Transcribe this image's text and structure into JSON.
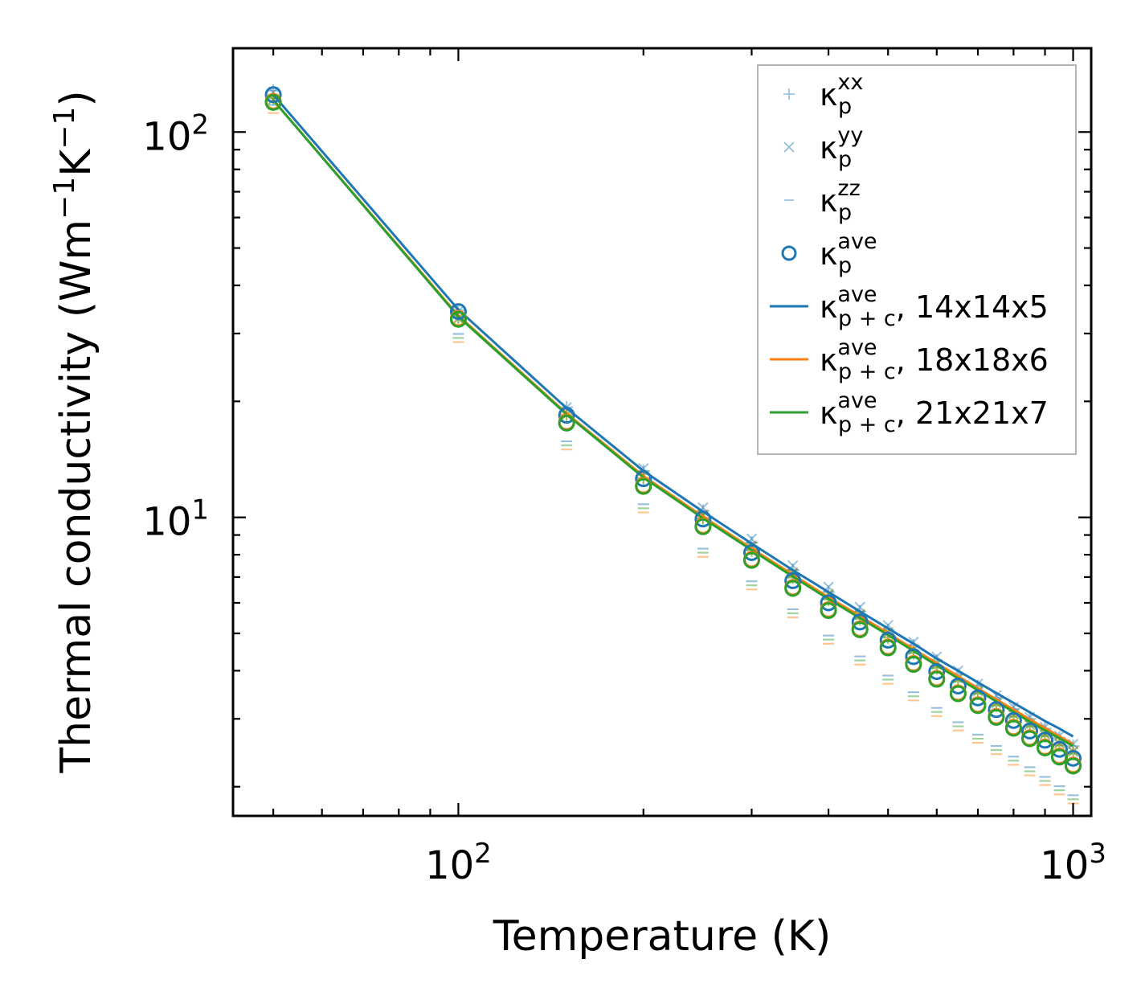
{
  "chart_data": {
    "type": "scatter",
    "title": "",
    "xlabel": "Temperature (K)",
    "ylabel_parts": [
      "Thermal conductivity (Wm",
      "−1",
      "K",
      "−1",
      ")"
    ],
    "xscale": "log",
    "yscale": "log",
    "xlim": [
      43,
      1070
    ],
    "ylim": [
      1.68,
      165
    ],
    "x_ticks": [
      {
        "value": 100,
        "base": "10",
        "exp": "2"
      },
      {
        "value": 1000,
        "base": "10",
        "exp": "3"
      }
    ],
    "y_ticks": [
      {
        "value": 10,
        "base": "10",
        "exp": "1"
      },
      {
        "value": 100,
        "base": "10",
        "exp": "2"
      }
    ],
    "legend_position": "top-right",
    "temperatures": [
      50,
      100,
      150,
      200,
      250,
      300,
      350,
      400,
      450,
      500,
      550,
      600,
      650,
      700,
      750,
      800,
      850,
      900,
      950,
      1000
    ],
    "series": [
      {
        "name": "κp^xx",
        "key": "xx",
        "marker": "plus",
        "values": [
          128,
          34.5,
          19.3,
          13.2,
          10.4,
          8.6,
          7.3,
          6.4,
          5.7,
          5.1,
          4.65,
          4.25,
          3.92,
          3.65,
          3.4,
          3.18,
          3.0,
          2.83,
          2.68,
          2.55
        ]
      },
      {
        "name": "κp^yy",
        "key": "yy",
        "marker": "x",
        "values": [
          127,
          34.3,
          19.3,
          13.4,
          10.6,
          8.8,
          7.5,
          6.6,
          5.85,
          5.25,
          4.75,
          4.35,
          4.0,
          3.7,
          3.45,
          3.22,
          3.03,
          2.86,
          2.71,
          2.58
        ]
      },
      {
        "name": "κp^zz",
        "key": "zz",
        "marker": "dash",
        "values": [
          112,
          28.5,
          15.0,
          10.3,
          7.9,
          6.5,
          5.5,
          4.7,
          4.15,
          3.7,
          3.35,
          3.05,
          2.8,
          2.6,
          2.43,
          2.28,
          2.14,
          2.02,
          1.91,
          1.81
        ]
      },
      {
        "name": "κp^ave",
        "key": "ave",
        "marker": "circle",
        "values": [
          125,
          34.2,
          18.4,
          12.6,
          9.9,
          8.1,
          6.85,
          6.0,
          5.35,
          4.8,
          4.35,
          3.98,
          3.65,
          3.4,
          3.17,
          2.97,
          2.79,
          2.64,
          2.5,
          2.37
        ]
      },
      {
        "name": "κp+c^ave, 14x14x5",
        "key": "line14",
        "marker": "line",
        "values": [
          125,
          34.6,
          19.2,
          13.2,
          10.35,
          8.55,
          7.3,
          6.4,
          5.7,
          5.15,
          4.7,
          4.3,
          4.0,
          3.73,
          3.5,
          3.3,
          3.12,
          2.96,
          2.83,
          2.7
        ]
      },
      {
        "name": "κp+c^ave, 18x18x6",
        "key": "line18",
        "marker": "line",
        "values": [
          121,
          33.4,
          18.6,
          12.8,
          10.05,
          8.3,
          7.1,
          6.2,
          5.55,
          5.0,
          4.55,
          4.18,
          3.87,
          3.6,
          3.37,
          3.17,
          2.99,
          2.84,
          2.7,
          2.58
        ]
      },
      {
        "name": "κp+c^ave, 21x21x7",
        "key": "line21",
        "marker": "line",
        "values": [
          121,
          33.2,
          18.5,
          12.7,
          9.95,
          8.22,
          7.02,
          6.14,
          5.48,
          4.95,
          4.5,
          4.13,
          3.82,
          3.56,
          3.33,
          3.13,
          2.95,
          2.8,
          2.67,
          2.55
        ]
      }
    ],
    "legend": [
      {
        "key": "xx",
        "symbol": "+",
        "base": "κ",
        "sup": "xx",
        "sub": "p",
        "suffix": ""
      },
      {
        "key": "yy",
        "symbol": "×",
        "base": "κ",
        "sup": "yy",
        "sub": "p",
        "suffix": ""
      },
      {
        "key": "zz",
        "symbol": "–",
        "base": "κ",
        "sup": "zz",
        "sub": "p",
        "suffix": ""
      },
      {
        "key": "ave",
        "symbol": "o",
        "base": "κ",
        "sup": "ave",
        "sub": "p",
        "suffix": ""
      },
      {
        "key": "line14",
        "symbol": "line",
        "base": "κ",
        "sup": "ave",
        "sub": "p + c",
        "suffix": ", 14x14x5"
      },
      {
        "key": "line18",
        "symbol": "line",
        "base": "κ",
        "sup": "ave",
        "sub": "p + c",
        "suffix": ", 18x18x6"
      },
      {
        "key": "line21",
        "symbol": "line",
        "base": "κ",
        "sup": "ave",
        "sub": "p + c",
        "suffix": ", 21x21x7"
      }
    ],
    "colors": {
      "blue": "#1f77b4",
      "orange": "#ff7f0e",
      "green": "#2ca02c",
      "frame": "#000000"
    }
  }
}
